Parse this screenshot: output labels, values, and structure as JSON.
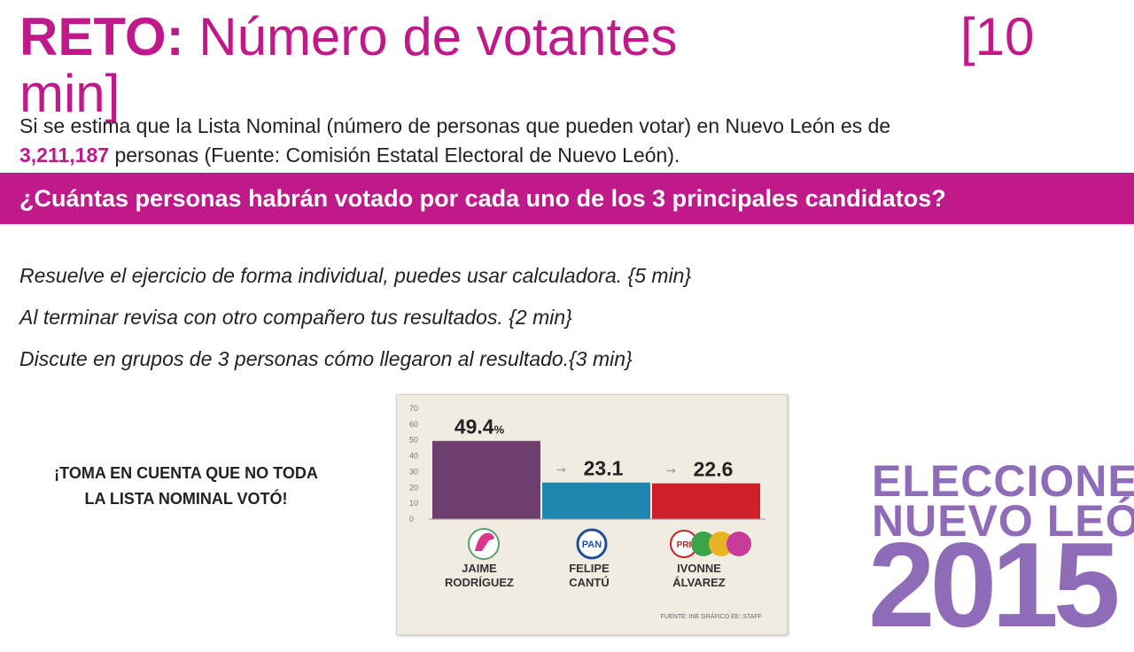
{
  "title": {
    "reto": "RETO:",
    "subject": "Número de votantes",
    "time_a": "[10",
    "time_b": "min]"
  },
  "intro": {
    "line1": "Si se estima que la Lista Nominal (número de personas que pueden votar) en Nuevo León es de",
    "number": "3,211,187",
    "line2": "personas (Fuente: Comisión Estatal Electoral de Nuevo León)."
  },
  "question": "¿Cuántas personas habrán votado por cada uno de los 3 principales candidatos?",
  "steps": [
    "Resuelve el ejercicio de forma individual, puedes usar calculadora. {5 min}",
    "Al terminar revisa con otro compañero tus resultados. {2 min}",
    "Discute en grupos de 3 personas cómo llegaron al resultado.{3 min}"
  ],
  "warning": {
    "line1": "¡TOMA EN CUENTA QUE NO TODA",
    "line2": "LA LISTA NOMINAL VOTÓ!"
  },
  "colors": {
    "accent": "#c01a8a",
    "brand_purple": "#8e6cb8"
  },
  "chart_data": {
    "type": "bar",
    "categories": [
      "JAIME RODRÍGUEZ",
      "FELIPE CANTÚ",
      "IVONNE ÁLVAREZ"
    ],
    "category_lines": [
      [
        "JAIME",
        "RODRÍGUEZ"
      ],
      [
        "FELIPE",
        "CANTÚ"
      ],
      [
        "IVONNE",
        "ÁLVAREZ"
      ]
    ],
    "values": [
      49.4,
      23.1,
      22.6
    ],
    "value_labels": [
      "49.4",
      "23.1",
      "22.6"
    ],
    "value_suffix": "%",
    "bar_colors": [
      "#6e3f6e",
      "#1f86b0",
      "#cc1f27"
    ],
    "party_icons": [
      "independent-horse-icon",
      "pan-logo-icon",
      "pri-coalition-logos-icon"
    ],
    "pan_text": "PAN",
    "pri_text": "PRI",
    "yticks": [
      0,
      10,
      20,
      30,
      40,
      50,
      60,
      70
    ],
    "ylim": [
      0,
      75
    ],
    "source": "FUENTE: INE  GRÁFICO EE: STAFF"
  },
  "brand": {
    "line1": "ELECCIONES",
    "line2": "NUEVO LEÓN",
    "year": "2015"
  }
}
